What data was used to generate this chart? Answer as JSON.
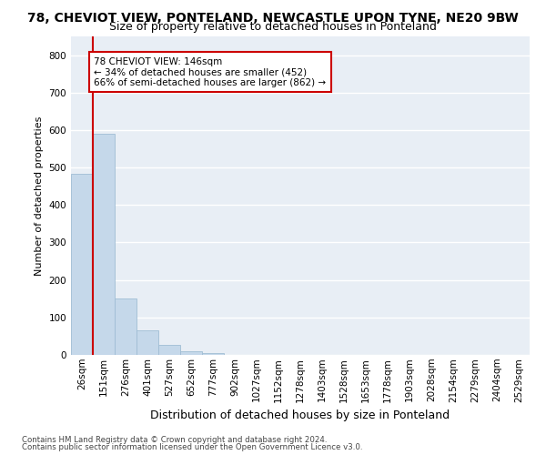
{
  "title_line1": "78, CHEVIOT VIEW, PONTELAND, NEWCASTLE UPON TYNE, NE20 9BW",
  "title_line2": "Size of property relative to detached houses in Ponteland",
  "xlabel": "Distribution of detached houses by size in Ponteland",
  "ylabel": "Number of detached properties",
  "bar_color": "#c5d8ea",
  "bar_edge_color": "#a0bdd4",
  "categories": [
    "26sqm",
    "151sqm",
    "276sqm",
    "401sqm",
    "527sqm",
    "652sqm",
    "777sqm",
    "902sqm",
    "1027sqm",
    "1152sqm",
    "1278sqm",
    "1403sqm",
    "1528sqm",
    "1653sqm",
    "1778sqm",
    "1903sqm",
    "2028sqm",
    "2154sqm",
    "2279sqm",
    "2404sqm",
    "2529sqm"
  ],
  "values": [
    483,
    591,
    150,
    65,
    27,
    10,
    6,
    0,
    0,
    0,
    0,
    0,
    0,
    0,
    0,
    0,
    0,
    0,
    0,
    0,
    0
  ],
  "ylim": [
    0,
    850
  ],
  "yticks": [
    0,
    100,
    200,
    300,
    400,
    500,
    600,
    700,
    800
  ],
  "property_label": "78 CHEVIOT VIEW: 146sqm",
  "pct_smaller": 34,
  "pct_smaller_count": 452,
  "pct_larger": 66,
  "pct_larger_count": 862,
  "annotation_box_color": "#ffffff",
  "annotation_box_edge_color": "#cc0000",
  "vline_color": "#cc0000",
  "footnote1": "Contains HM Land Registry data © Crown copyright and database right 2024.",
  "footnote2": "Contains public sector information licensed under the Open Government Licence v3.0.",
  "plot_bg_color": "#e8eef5",
  "grid_color": "#ffffff",
  "title1_fontsize": 10,
  "title2_fontsize": 9,
  "ylabel_fontsize": 8,
  "xlabel_fontsize": 9,
  "tick_fontsize": 7.5,
  "annot_fontsize": 7.5
}
